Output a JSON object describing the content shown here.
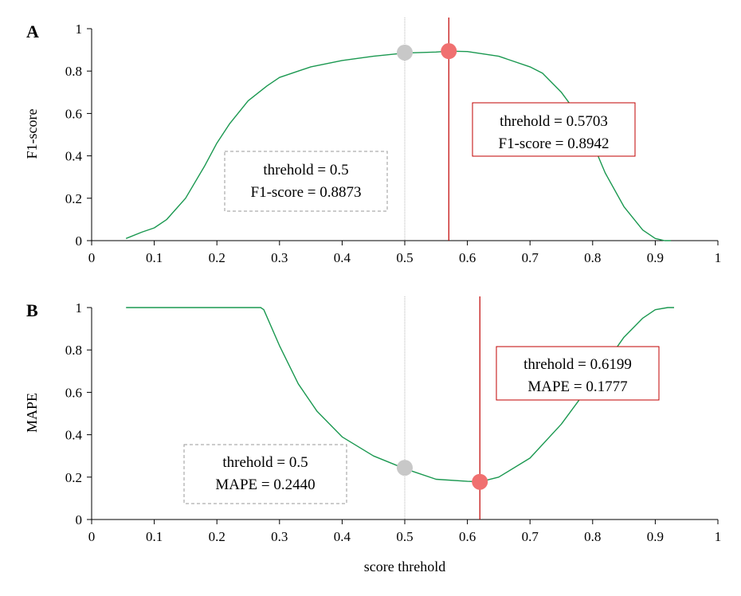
{
  "chart_data": [
    {
      "type": "line",
      "panel_label": "A",
      "xlabel": "",
      "ylabel": "F1-score",
      "xlim": [
        0,
        1
      ],
      "ylim": [
        0,
        1
      ],
      "xticks": [
        "0",
        "0.1",
        "0.2",
        "0.3",
        "0.4",
        "0.5",
        "0.6",
        "0.7",
        "0.8",
        "0.9",
        "1"
      ],
      "yticks": [
        "0",
        "0.2",
        "0.4",
        "0.6",
        "0.8",
        "1"
      ],
      "series": [
        {
          "color": "#1a9850",
          "x": [
            0.055,
            0.08,
            0.1,
            0.12,
            0.15,
            0.18,
            0.2,
            0.22,
            0.25,
            0.28,
            0.3,
            0.33,
            0.35,
            0.4,
            0.45,
            0.5,
            0.55,
            0.57,
            0.6,
            0.65,
            0.7,
            0.72,
            0.75,
            0.78,
            0.8,
            0.82,
            0.85,
            0.88,
            0.9,
            0.915,
            0.925
          ],
          "y": [
            0.01,
            0.04,
            0.06,
            0.1,
            0.2,
            0.35,
            0.46,
            0.55,
            0.66,
            0.73,
            0.77,
            0.8,
            0.82,
            0.85,
            0.87,
            0.885,
            0.89,
            0.894,
            0.892,
            0.87,
            0.82,
            0.79,
            0.7,
            0.58,
            0.46,
            0.32,
            0.16,
            0.05,
            0.01,
            0.0,
            0.0
          ]
        }
      ],
      "reference_points": [
        {
          "x": 0.5,
          "y": 0.8873,
          "color": "#c8c8c8",
          "line_color": "#b4b4b4",
          "line_style": "dotted"
        },
        {
          "x": 0.5703,
          "y": 0.8942,
          "color": "#f07070",
          "line_color": "#c00000",
          "line_style": "solid"
        }
      ],
      "annotations": [
        {
          "lines": [
            "threhold = 0.5",
            "F1-score = 0.8873"
          ],
          "border_color": "#999999",
          "border_style": "dashed"
        },
        {
          "lines": [
            "threhold = 0.5703",
            "F1-score = 0.8942"
          ],
          "border_color": "#c00000",
          "border_style": "solid"
        }
      ]
    },
    {
      "type": "line",
      "panel_label": "B",
      "xlabel": "score threhold",
      "ylabel": "MAPE",
      "xlim": [
        0,
        1
      ],
      "ylim": [
        0,
        1
      ],
      "xticks": [
        "0",
        "0.1",
        "0.2",
        "0.3",
        "0.4",
        "0.5",
        "0.6",
        "0.7",
        "0.8",
        "0.9",
        "1"
      ],
      "yticks": [
        "0",
        "0.2",
        "0.4",
        "0.6",
        "0.8",
        "1"
      ],
      "series": [
        {
          "color": "#1a9850",
          "x": [
            0.055,
            0.27,
            0.275,
            0.3,
            0.33,
            0.36,
            0.4,
            0.45,
            0.5,
            0.55,
            0.6,
            0.62,
            0.65,
            0.7,
            0.75,
            0.8,
            0.85,
            0.88,
            0.9,
            0.92,
            0.93
          ],
          "y": [
            1.0,
            1.0,
            0.99,
            0.82,
            0.64,
            0.51,
            0.39,
            0.3,
            0.24,
            0.19,
            0.18,
            0.1777,
            0.2,
            0.29,
            0.45,
            0.65,
            0.86,
            0.95,
            0.99,
            1.0,
            1.0
          ]
        }
      ],
      "reference_points": [
        {
          "x": 0.5,
          "y": 0.244,
          "color": "#c8c8c8",
          "line_color": "#b4b4b4",
          "line_style": "dotted"
        },
        {
          "x": 0.6199,
          "y": 0.1777,
          "color": "#f07070",
          "line_color": "#c00000",
          "line_style": "solid"
        }
      ],
      "annotations": [
        {
          "lines": [
            "threhold = 0.5",
            "MAPE = 0.2440"
          ],
          "border_color": "#999999",
          "border_style": "dashed"
        },
        {
          "lines": [
            "threhold = 0.6199",
            "MAPE = 0.1777"
          ],
          "border_color": "#c00000",
          "border_style": "solid"
        }
      ]
    }
  ]
}
